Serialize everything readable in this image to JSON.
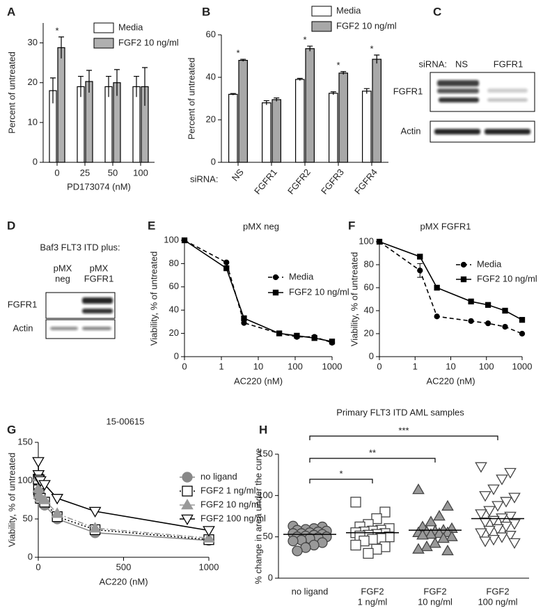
{
  "chart_data": [
    {
      "type": "bar",
      "panel": "A",
      "y_label": "Percent of untreated",
      "x_label": "PD173074 (nM)",
      "categories": [
        "0",
        "25",
        "50",
        "100"
      ],
      "series": [
        {
          "name": "Media",
          "color": "#ffffff",
          "values": [
            18,
            19,
            19,
            19
          ],
          "errors": [
            3.2,
            2.6,
            2.6,
            2.6
          ]
        },
        {
          "name": "FGF2 10 ng/ml",
          "color": "#b0b0b0",
          "values": [
            28.8,
            20.3,
            20,
            19
          ],
          "errors": [
            2.7,
            2.8,
            3.3,
            4.8
          ]
        }
      ],
      "significance": [
        "*",
        null,
        null,
        null
      ],
      "ylim": [
        0,
        35
      ],
      "yticks": [
        0,
        10,
        20,
        30
      ]
    },
    {
      "type": "bar",
      "panel": "B",
      "y_label": "Percent of untreated",
      "category_label_prefix": "siRNA:",
      "categories": [
        "NS",
        "FGFR1",
        "FGFR2",
        "FGFR3",
        "FGFR4"
      ],
      "series": [
        {
          "name": "Media",
          "color": "#ffffff",
          "values": [
            32,
            28,
            39,
            32.5,
            33.5
          ],
          "errors": [
            0.4,
            1,
            0.5,
            0.7,
            1.2
          ]
        },
        {
          "name": "FGF2 10 ng/ml",
          "color": "#a8a8a8",
          "values": [
            48,
            29.5,
            53.5,
            42,
            48.5
          ],
          "errors": [
            0.5,
            0.8,
            1.2,
            0.7,
            2
          ]
        }
      ],
      "significance": [
        "*",
        null,
        "*",
        "*",
        "*"
      ],
      "ylim": [
        0,
        60
      ],
      "yticks": [
        0,
        20,
        40,
        60
      ]
    },
    {
      "type": "line",
      "panel": "E",
      "title": "pMX neg",
      "y_label": "Viability, % of untreated",
      "x_label": "AC220 (nM)",
      "xscale": "log",
      "x": [
        0,
        1.37,
        4.1,
        37,
        111,
        333,
        1000
      ],
      "series": [
        {
          "name": "Media",
          "color": "#000000",
          "marker": "circle",
          "marker_fill": "#000000",
          "linestyle": "dashed",
          "values": [
            100,
            81,
            29,
            20,
            17,
            17,
            12
          ]
        },
        {
          "name": "FGF2 10 ng/ml",
          "color": "#000000",
          "marker": "square",
          "marker_fill": "#000000",
          "linestyle": "solid",
          "values": [
            100,
            76,
            33,
            20,
            18,
            16,
            13
          ]
        }
      ],
      "xlim": [
        0,
        1000
      ],
      "xticks": [
        0,
        1,
        10,
        100,
        1000
      ],
      "ylim": [
        0,
        100
      ],
      "yticks": [
        0,
        20,
        40,
        60,
        80,
        100
      ]
    },
    {
      "type": "line",
      "panel": "F",
      "title": "pMX FGFR1",
      "y_label": "Viability, % of untreated",
      "x_label": "AC220 (nM)",
      "xscale": "log",
      "x": [
        0,
        1.37,
        4.1,
        37,
        111,
        333,
        1000
      ],
      "series": [
        {
          "name": "Media",
          "color": "#000000",
          "marker": "circle",
          "marker_fill": "#000000",
          "linestyle": "dashed",
          "values": [
            100,
            75,
            35,
            31,
            29,
            26,
            20
          ],
          "errors": [
            null,
            6,
            null,
            null,
            null,
            null,
            null
          ]
        },
        {
          "name": "FGF2 10 ng/ml",
          "color": "#000000",
          "marker": "square",
          "marker_fill": "#000000",
          "linestyle": "solid",
          "values": [
            100,
            87,
            60,
            48,
            45,
            40,
            32
          ]
        }
      ],
      "xlim": [
        0,
        1000
      ],
      "xticks": [
        0,
        1,
        10,
        100,
        1000
      ],
      "ylim": [
        0,
        100
      ],
      "yticks": [
        0,
        20,
        40,
        60,
        80,
        100
      ]
    },
    {
      "type": "line",
      "panel": "G",
      "title": "15-00615",
      "y_label": "Viability, % of untreated",
      "x_label": "AC220 (nM)",
      "xscale": "linear",
      "x": [
        0,
        1.37,
        4.1,
        12.3,
        37,
        111,
        333,
        1000
      ],
      "series": [
        {
          "name": "no ligand",
          "color": "#888888",
          "marker": "circle",
          "marker_fill": "#888888",
          "linestyle": "solid",
          "values": [
            100,
            85,
            80,
            75,
            68,
            50,
            32,
            22
          ]
        },
        {
          "name": "FGF2 1 ng/ml",
          "color": "#000000",
          "marker": "square",
          "marker_fill": "#ffffff",
          "linestyle": "dotted",
          "values": [
            102,
            88,
            83,
            77,
            72,
            53,
            36,
            23
          ]
        },
        {
          "name": "FGF2 10 ng/ml",
          "color": "#999999",
          "marker": "triangle-up",
          "marker_fill": "#999999",
          "linestyle": "dashdot",
          "values": [
            105,
            90,
            82,
            78,
            75,
            57,
            38,
            25
          ]
        },
        {
          "name": "FGF2 100 ng/ml",
          "color": "#000000",
          "marker": "triangle-down",
          "marker_fill": "#ffffff",
          "linestyle": "solid",
          "values": [
            125,
            108,
            102,
            100,
            95,
            77,
            60,
            35
          ]
        }
      ],
      "xlim": [
        0,
        1000
      ],
      "xticks": [
        0,
        500,
        1000
      ],
      "ylim": [
        0,
        150
      ],
      "yticks": [
        0,
        50,
        100,
        150
      ]
    },
    {
      "type": "strip",
      "panel": "H",
      "title": "Primary FLT3 ITD AML samples",
      "y_label": "% change in area under the curve",
      "categories": [
        [
          "no ligand"
        ],
        [
          "FGF2",
          "1 ng/ml"
        ],
        [
          "FGF2",
          "10 ng/ml"
        ],
        [
          "FGF2",
          "100 ng/ml"
        ]
      ],
      "groups": [
        {
          "marker": "circle",
          "marker_fill": "#999999",
          "values": [
            63,
            62,
            60,
            59,
            58,
            57,
            56,
            55,
            54,
            54,
            53,
            52,
            51,
            50,
            50,
            49,
            48,
            46,
            45,
            43,
            40,
            37,
            33
          ]
        },
        {
          "marker": "square",
          "marker_fill": "#ffffff",
          "values": [
            92,
            80,
            72,
            65,
            62,
            60,
            58,
            57,
            56,
            55,
            54,
            53,
            52,
            51,
            50,
            48,
            47,
            45,
            40,
            38,
            35,
            30
          ]
        },
        {
          "marker": "triangle-up",
          "marker_fill": "#999999",
          "values": [
            107,
            87,
            75,
            68,
            62,
            60,
            58,
            57,
            56,
            55,
            55,
            54,
            53,
            52,
            50,
            48,
            42,
            38,
            35,
            33
          ]
        },
        {
          "marker": "triangle-down",
          "marker_fill": "#ffffff",
          "values": [
            135,
            128,
            120,
            108,
            100,
            98,
            93,
            88,
            82,
            78,
            75,
            73,
            70,
            68,
            66,
            63,
            60,
            58,
            55,
            52,
            50,
            47,
            45,
            43
          ]
        }
      ],
      "means": [
        53,
        55,
        58,
        72
      ],
      "comparisons": [
        {
          "groups": [
            0,
            1
          ],
          "label": "*"
        },
        {
          "groups": [
            0,
            2
          ],
          "label": "**"
        },
        {
          "groups": [
            0,
            3
          ],
          "label": "***"
        }
      ],
      "ylim": [
        0,
        150
      ],
      "yticks": [
        0,
        50,
        100,
        150
      ]
    }
  ],
  "blots": [
    {
      "panel": "C",
      "header": "siRNA:",
      "lanes": [
        "NS",
        "FGFR1"
      ],
      "rows": [
        "FGFR1",
        "Actin"
      ]
    },
    {
      "panel": "D",
      "title": "Baf3 FLT3 ITD plus:",
      "lanes": [
        [
          "pMX",
          "neg"
        ],
        [
          "pMX",
          "FGFR1"
        ]
      ],
      "rows": [
        "FGFR1",
        "Actin"
      ]
    }
  ]
}
